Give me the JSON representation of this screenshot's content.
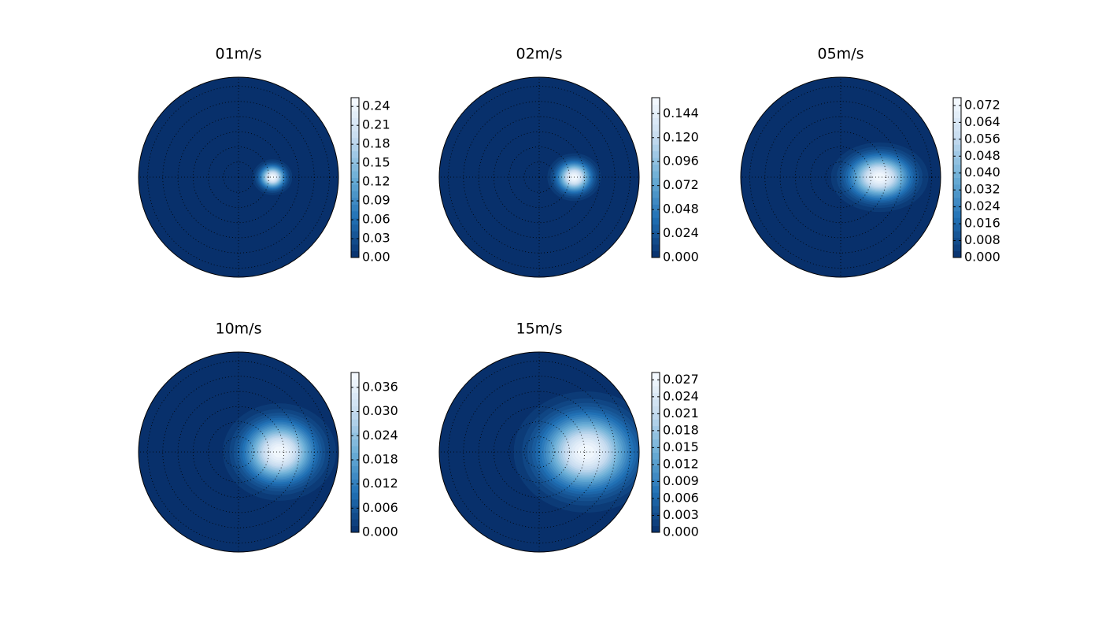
{
  "chart_data": [
    {
      "type": "polar-contour",
      "title": "01m/s",
      "clim": [
        0,
        0.254
      ],
      "cticks": [
        {
          "value": 0,
          "label": "0.00"
        },
        {
          "value": 0.03,
          "label": "0.03"
        },
        {
          "value": 0.06,
          "label": "0.06"
        },
        {
          "value": 0.09,
          "label": "0.09"
        },
        {
          "value": 0.12,
          "label": "0.12"
        },
        {
          "value": 0.15,
          "label": "0.15"
        },
        {
          "value": 0.18,
          "label": "0.18"
        },
        {
          "value": 0.21,
          "label": "0.21"
        },
        {
          "value": 0.24,
          "label": "0.24"
        }
      ],
      "spot": {
        "x": 0.34,
        "y": 0,
        "rx": 0.2,
        "ry": 0.18
      },
      "colormap": [
        "#08306b",
        "#2171b5",
        "#6baed6",
        "#c6dbef",
        "#f7fbff"
      ]
    },
    {
      "type": "polar-contour",
      "title": "02m/s",
      "clim": [
        0,
        0.16
      ],
      "cticks": [
        {
          "value": 0,
          "label": "0.000"
        },
        {
          "value": 0.024,
          "label": "0.024"
        },
        {
          "value": 0.048,
          "label": "0.048"
        },
        {
          "value": 0.072,
          "label": "0.072"
        },
        {
          "value": 0.096,
          "label": "0.096"
        },
        {
          "value": 0.12,
          "label": "0.120"
        },
        {
          "value": 0.144,
          "label": "0.144"
        }
      ],
      "spot": {
        "x": 0.35,
        "y": 0,
        "rx": 0.27,
        "ry": 0.24
      },
      "colormap": [
        "#08306b",
        "#2171b5",
        "#6baed6",
        "#c6dbef",
        "#f7fbff"
      ]
    },
    {
      "type": "polar-contour",
      "title": "05m/s",
      "clim": [
        0,
        0.0757
      ],
      "cticks": [
        {
          "value": 0,
          "label": "0.000"
        },
        {
          "value": 0.008,
          "label": "0.008"
        },
        {
          "value": 0.016,
          "label": "0.016"
        },
        {
          "value": 0.024,
          "label": "0.024"
        },
        {
          "value": 0.032,
          "label": "0.032"
        },
        {
          "value": 0.04,
          "label": "0.040"
        },
        {
          "value": 0.048,
          "label": "0.048"
        },
        {
          "value": 0.056,
          "label": "0.056"
        },
        {
          "value": 0.064,
          "label": "0.064"
        },
        {
          "value": 0.072,
          "label": "0.072"
        }
      ],
      "spot": {
        "x": 0.39,
        "y": 0,
        "rx": 0.49,
        "ry": 0.35
      },
      "colormap": [
        "#08306b",
        "#2171b5",
        "#6baed6",
        "#c6dbef",
        "#f7fbff"
      ]
    },
    {
      "type": "polar-contour",
      "title": "10m/s",
      "clim": [
        0,
        0.0397
      ],
      "cticks": [
        {
          "value": 0,
          "label": "0.000"
        },
        {
          "value": 0.006,
          "label": "0.006"
        },
        {
          "value": 0.012,
          "label": "0.012"
        },
        {
          "value": 0.018,
          "label": "0.018"
        },
        {
          "value": 0.024,
          "label": "0.024"
        },
        {
          "value": 0.03,
          "label": "0.030"
        },
        {
          "value": 0.036,
          "label": "0.036"
        }
      ],
      "spot": {
        "x": 0.41,
        "y": 0,
        "rx": 0.57,
        "ry": 0.49
      },
      "colormap": [
        "#08306b",
        "#2171b5",
        "#6baed6",
        "#c6dbef",
        "#f7fbff"
      ]
    },
    {
      "type": "polar-contour",
      "title": "15m/s",
      "clim": [
        0,
        0.0283
      ],
      "cticks": [
        {
          "value": 0,
          "label": "0.000"
        },
        {
          "value": 0.003,
          "label": "0.003"
        },
        {
          "value": 0.006,
          "label": "0.006"
        },
        {
          "value": 0.009,
          "label": "0.009"
        },
        {
          "value": 0.012,
          "label": "0.012"
        },
        {
          "value": 0.015,
          "label": "0.015"
        },
        {
          "value": 0.018,
          "label": "0.018"
        },
        {
          "value": 0.021,
          "label": "0.021"
        },
        {
          "value": 0.024,
          "label": "0.024"
        },
        {
          "value": 0.027,
          "label": "0.027"
        }
      ],
      "spot": {
        "x": 0.47,
        "y": 0,
        "rx": 0.73,
        "ry": 0.61
      },
      "colormap": [
        "#08306b",
        "#2171b5",
        "#6baed6",
        "#c6dbef",
        "#f7fbff"
      ]
    }
  ]
}
